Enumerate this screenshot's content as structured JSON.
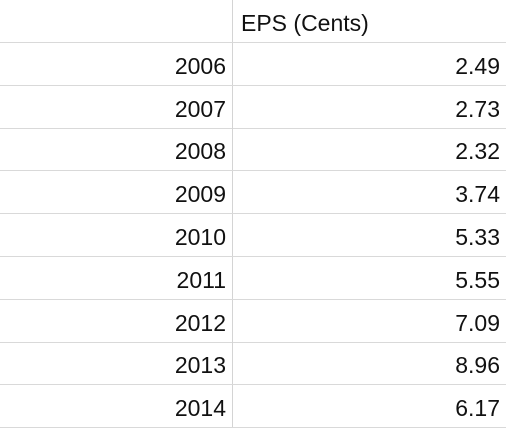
{
  "table": {
    "header": {
      "column": "EPS (Cents)"
    },
    "rows": [
      [
        "2006",
        "2.49"
      ],
      [
        "2007",
        "2.73"
      ],
      [
        "2008",
        "2.32"
      ],
      [
        "2009",
        "3.74"
      ],
      [
        "2010",
        "5.33"
      ],
      [
        "2011",
        "5.55"
      ],
      [
        "2012",
        "7.09"
      ],
      [
        "2013",
        "8.96"
      ],
      [
        "2014",
        "6.17"
      ]
    ]
  }
}
